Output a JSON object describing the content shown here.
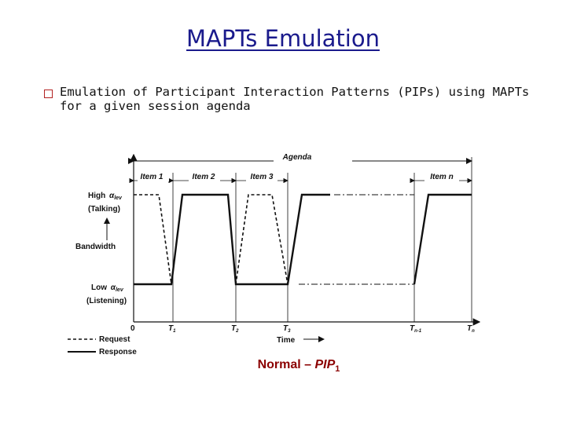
{
  "slide": {
    "title": "MAPTs Emulation",
    "bullet": "Emulation of Participant Interaction Patterns (PIPs) using MAPTs for a given session agenda"
  },
  "diagram": {
    "agenda_label": "Agenda",
    "items": [
      "Item 1",
      "Item 2",
      "Item 3",
      "Item n"
    ],
    "high_label": "High",
    "high_sub": "(Talking)",
    "low_label": "Low",
    "low_sub": "(Listening)",
    "alpha_symbol": "α",
    "alpha_subscript": "lev",
    "y_axis_label": "Bandwidth",
    "x_axis_label": "Time",
    "origin_label": "0",
    "time_marks": [
      "T1",
      "T2",
      "T3",
      "Tn-1",
      "Tn"
    ],
    "legend": [
      {
        "style": "dashed",
        "label": "Request"
      },
      {
        "style": "solid",
        "label": "Response"
      }
    ]
  },
  "caption": {
    "prefix": "Normal – ",
    "name": "PIP",
    "subscript": "1"
  }
}
